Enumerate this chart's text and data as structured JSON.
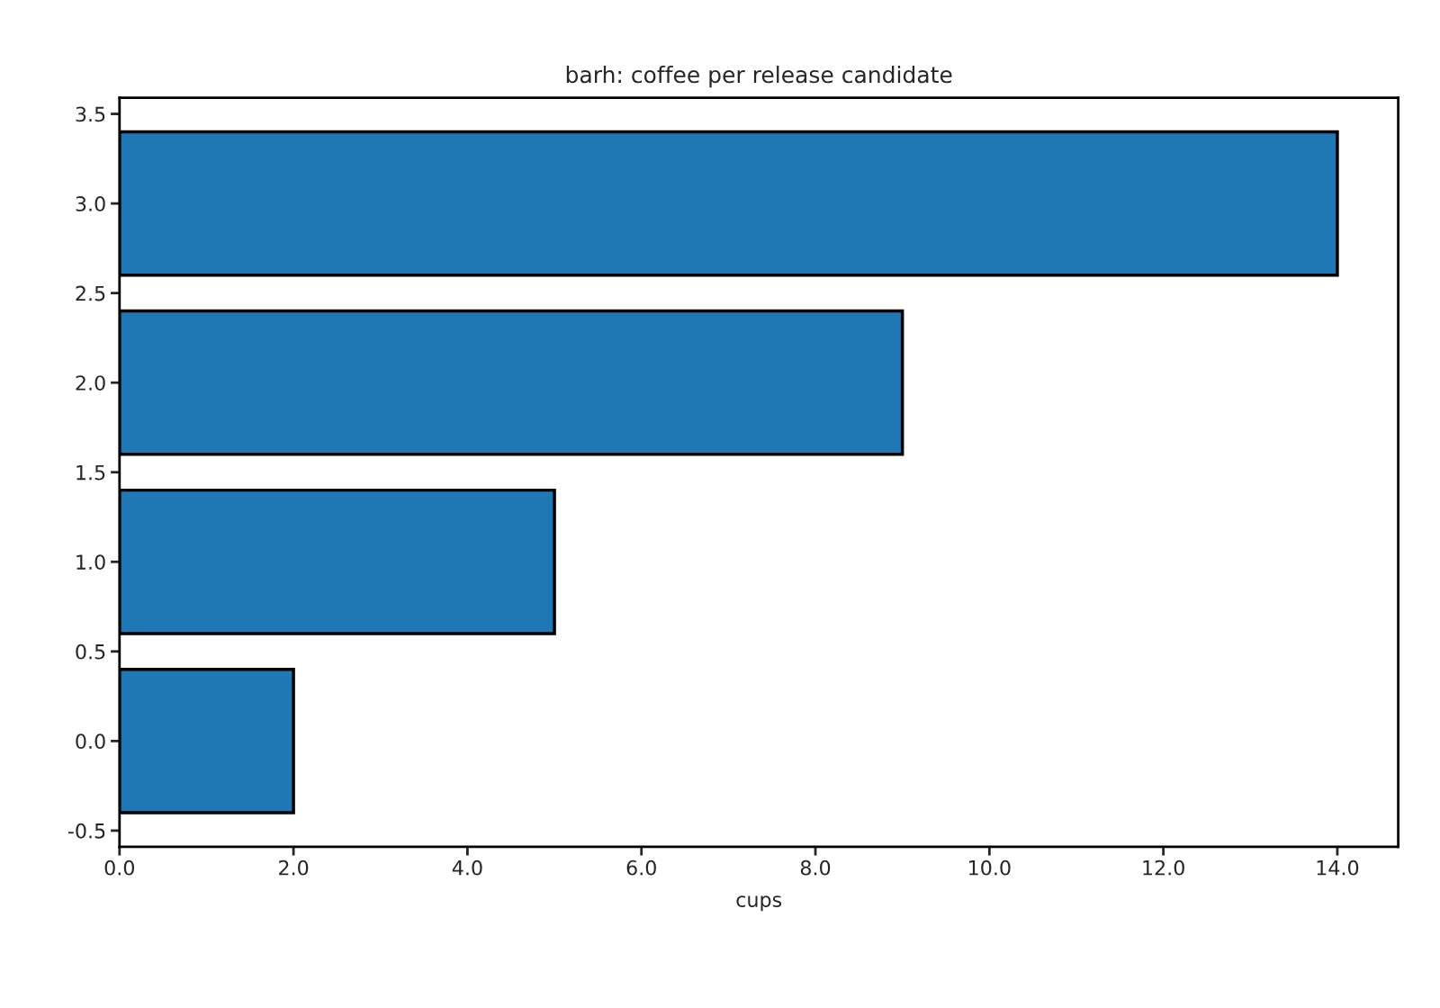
{
  "chart_data": {
    "type": "bar",
    "orientation": "horizontal",
    "title": "barh: coffee per release candidate",
    "xlabel": "cups",
    "x": [
      0,
      1,
      2,
      3
    ],
    "values": [
      2,
      5,
      9,
      14
    ],
    "color": "#1f77b4",
    "xlim": [
      0,
      14.7
    ],
    "xticks": [
      {
        "value": 0,
        "label": "0.0"
      },
      {
        "value": 2,
        "label": "2.0"
      },
      {
        "value": 4,
        "label": "4.0"
      },
      {
        "value": 6,
        "label": "6.0"
      },
      {
        "value": 8,
        "label": "8.0"
      },
      {
        "value": 10,
        "label": "10.0"
      },
      {
        "value": 12,
        "label": "12.0"
      },
      {
        "value": 14,
        "label": "14.0"
      }
    ],
    "ylim": [
      -0.59,
      3.59
    ],
    "yticks": [
      {
        "value": -0.5,
        "label": "-0.5"
      },
      {
        "value": 0,
        "label": "0.0"
      },
      {
        "value": 0.5,
        "label": "0.5"
      },
      {
        "value": 1,
        "label": "1.0"
      },
      {
        "value": 1.5,
        "label": "1.5"
      },
      {
        "value": 2,
        "label": "2.0"
      },
      {
        "value": 2.5,
        "label": "2.5"
      },
      {
        "value": 3,
        "label": "3.0"
      },
      {
        "value": 3.5,
        "label": "3.5"
      }
    ],
    "grid": false,
    "legend": false
  }
}
